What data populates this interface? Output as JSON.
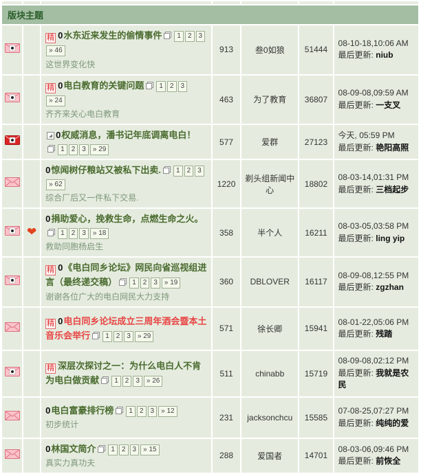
{
  "header": {
    "title": "版块主题"
  },
  "labels": {
    "last_update": "最后更新:",
    "more_pages": "»"
  },
  "rows": [
    {
      "icon": "pink-dot",
      "digest": true,
      "moved": false,
      "heart": false,
      "prefix": "0",
      "red": false,
      "title": "水东近来发生的偷情事件",
      "pages": [
        "1",
        "2",
        "3"
      ],
      "last_page": "46",
      "subtitle": "这世界变化快",
      "replies": "913",
      "author": "叁0如狼",
      "views": "51444",
      "date": "08-10-18,10:06 AM",
      "updater": "niub"
    },
    {
      "icon": "pink-dot",
      "digest": true,
      "moved": false,
      "heart": false,
      "prefix": "0",
      "red": false,
      "title": "电白教育的关键问题",
      "pages": [
        "1",
        "2",
        "3"
      ],
      "last_page": "24",
      "subtitle": "齐齐来关心电白教育",
      "replies": "463",
      "author": "为了教育",
      "views": "36807",
      "date": "08-09-08,09:59 AM",
      "updater": "一支叉"
    },
    {
      "icon": "red-dot",
      "digest": false,
      "moved": true,
      "heart": false,
      "prefix": "0",
      "red": false,
      "title": "权威消息，潘书记年底调离电白！",
      "pages": [
        "1",
        "2",
        "3"
      ],
      "last_page": "29",
      "subtitle": "",
      "replies": "577",
      "author": "爱群",
      "views": "27123",
      "date": "今天, 05:59 PM",
      "updater": "艳阳高照"
    },
    {
      "icon": "pink-x",
      "digest": false,
      "moved": false,
      "heart": false,
      "prefix": "0",
      "red": false,
      "title": "惊闻树仔粮站又被私下出卖.",
      "pages": [
        "1",
        "2",
        "3"
      ],
      "last_page": "62",
      "subtitle": "综合厂后又一件私下交易.",
      "replies": "1220",
      "author": "剃头组新闻中心",
      "views": "18802",
      "date": "08-03-14,01:31 PM",
      "updater": "三档起步"
    },
    {
      "icon": "pink-dot",
      "digest": false,
      "moved": false,
      "heart": true,
      "prefix": "0",
      "red": false,
      "title": "捐助爱心，挽救生命，点燃生命之火。",
      "pages": [
        "1",
        "2",
        "3"
      ],
      "last_page": "18",
      "subtitle": "救助同胞杨启生",
      "replies": "358",
      "author": "半个人",
      "views": "16211",
      "date": "08-03-05,03:58 PM",
      "updater": "ling yip"
    },
    {
      "icon": "pink-dot",
      "digest": true,
      "moved": false,
      "heart": false,
      "prefix": "0",
      "red": false,
      "title": "《电白同乡论坛》网民向省巡视组进言（最终递交稿）",
      "pages": [
        "1",
        "2",
        "3"
      ],
      "last_page": "19",
      "subtitle": "谢谢各位广大的电白网民大力支持",
      "replies": "360",
      "author": "DBLOVER",
      "views": "16117",
      "date": "08-09-08,12:55 PM",
      "updater": "zgzhan"
    },
    {
      "icon": "pink-x",
      "digest": true,
      "moved": false,
      "heart": false,
      "prefix": "0",
      "red": true,
      "title": "电白同乡论坛成立三周年酒会暨本土音乐会举行",
      "pages": [
        "1",
        "2",
        "3"
      ],
      "last_page": "29",
      "subtitle": "",
      "replies": "571",
      "author": "徐长卿",
      "views": "15941",
      "date": "08-01-22,05:06 PM",
      "updater": "残踏"
    },
    {
      "icon": "pink-dot",
      "digest": true,
      "moved": false,
      "heart": false,
      "prefix": "",
      "red": false,
      "title": "深层次探讨之一：为什么电白人不肯为电白做贡献",
      "pages": [
        "1",
        "2",
        "3"
      ],
      "last_page": "26",
      "subtitle": "",
      "replies": "511",
      "author": "chinabb",
      "views": "15719",
      "date": "08-09-08,02:12 PM",
      "updater": "我就是农民"
    },
    {
      "icon": "pink-x",
      "digest": false,
      "moved": false,
      "heart": false,
      "prefix": "0",
      "red": false,
      "title": "电白富豪排行榜",
      "pages": [
        "1",
        "2",
        "3"
      ],
      "last_page": "12",
      "subtitle": "初步统计",
      "replies": "231",
      "author": "jacksonchcu",
      "views": "15585",
      "date": "07-08-25,07:27 PM",
      "updater": "纯纯的爱"
    },
    {
      "icon": "pink-x",
      "digest": false,
      "moved": false,
      "heart": false,
      "prefix": "0",
      "red": false,
      "title": "林国文简介",
      "pages": [
        "1",
        "2",
        "3"
      ],
      "last_page": "15",
      "subtitle": "真实力真功夫",
      "replies": "288",
      "author": "爱国者",
      "views": "14701",
      "date": "08-03-06,09:46 PM",
      "updater": "前恢全"
    }
  ]
}
